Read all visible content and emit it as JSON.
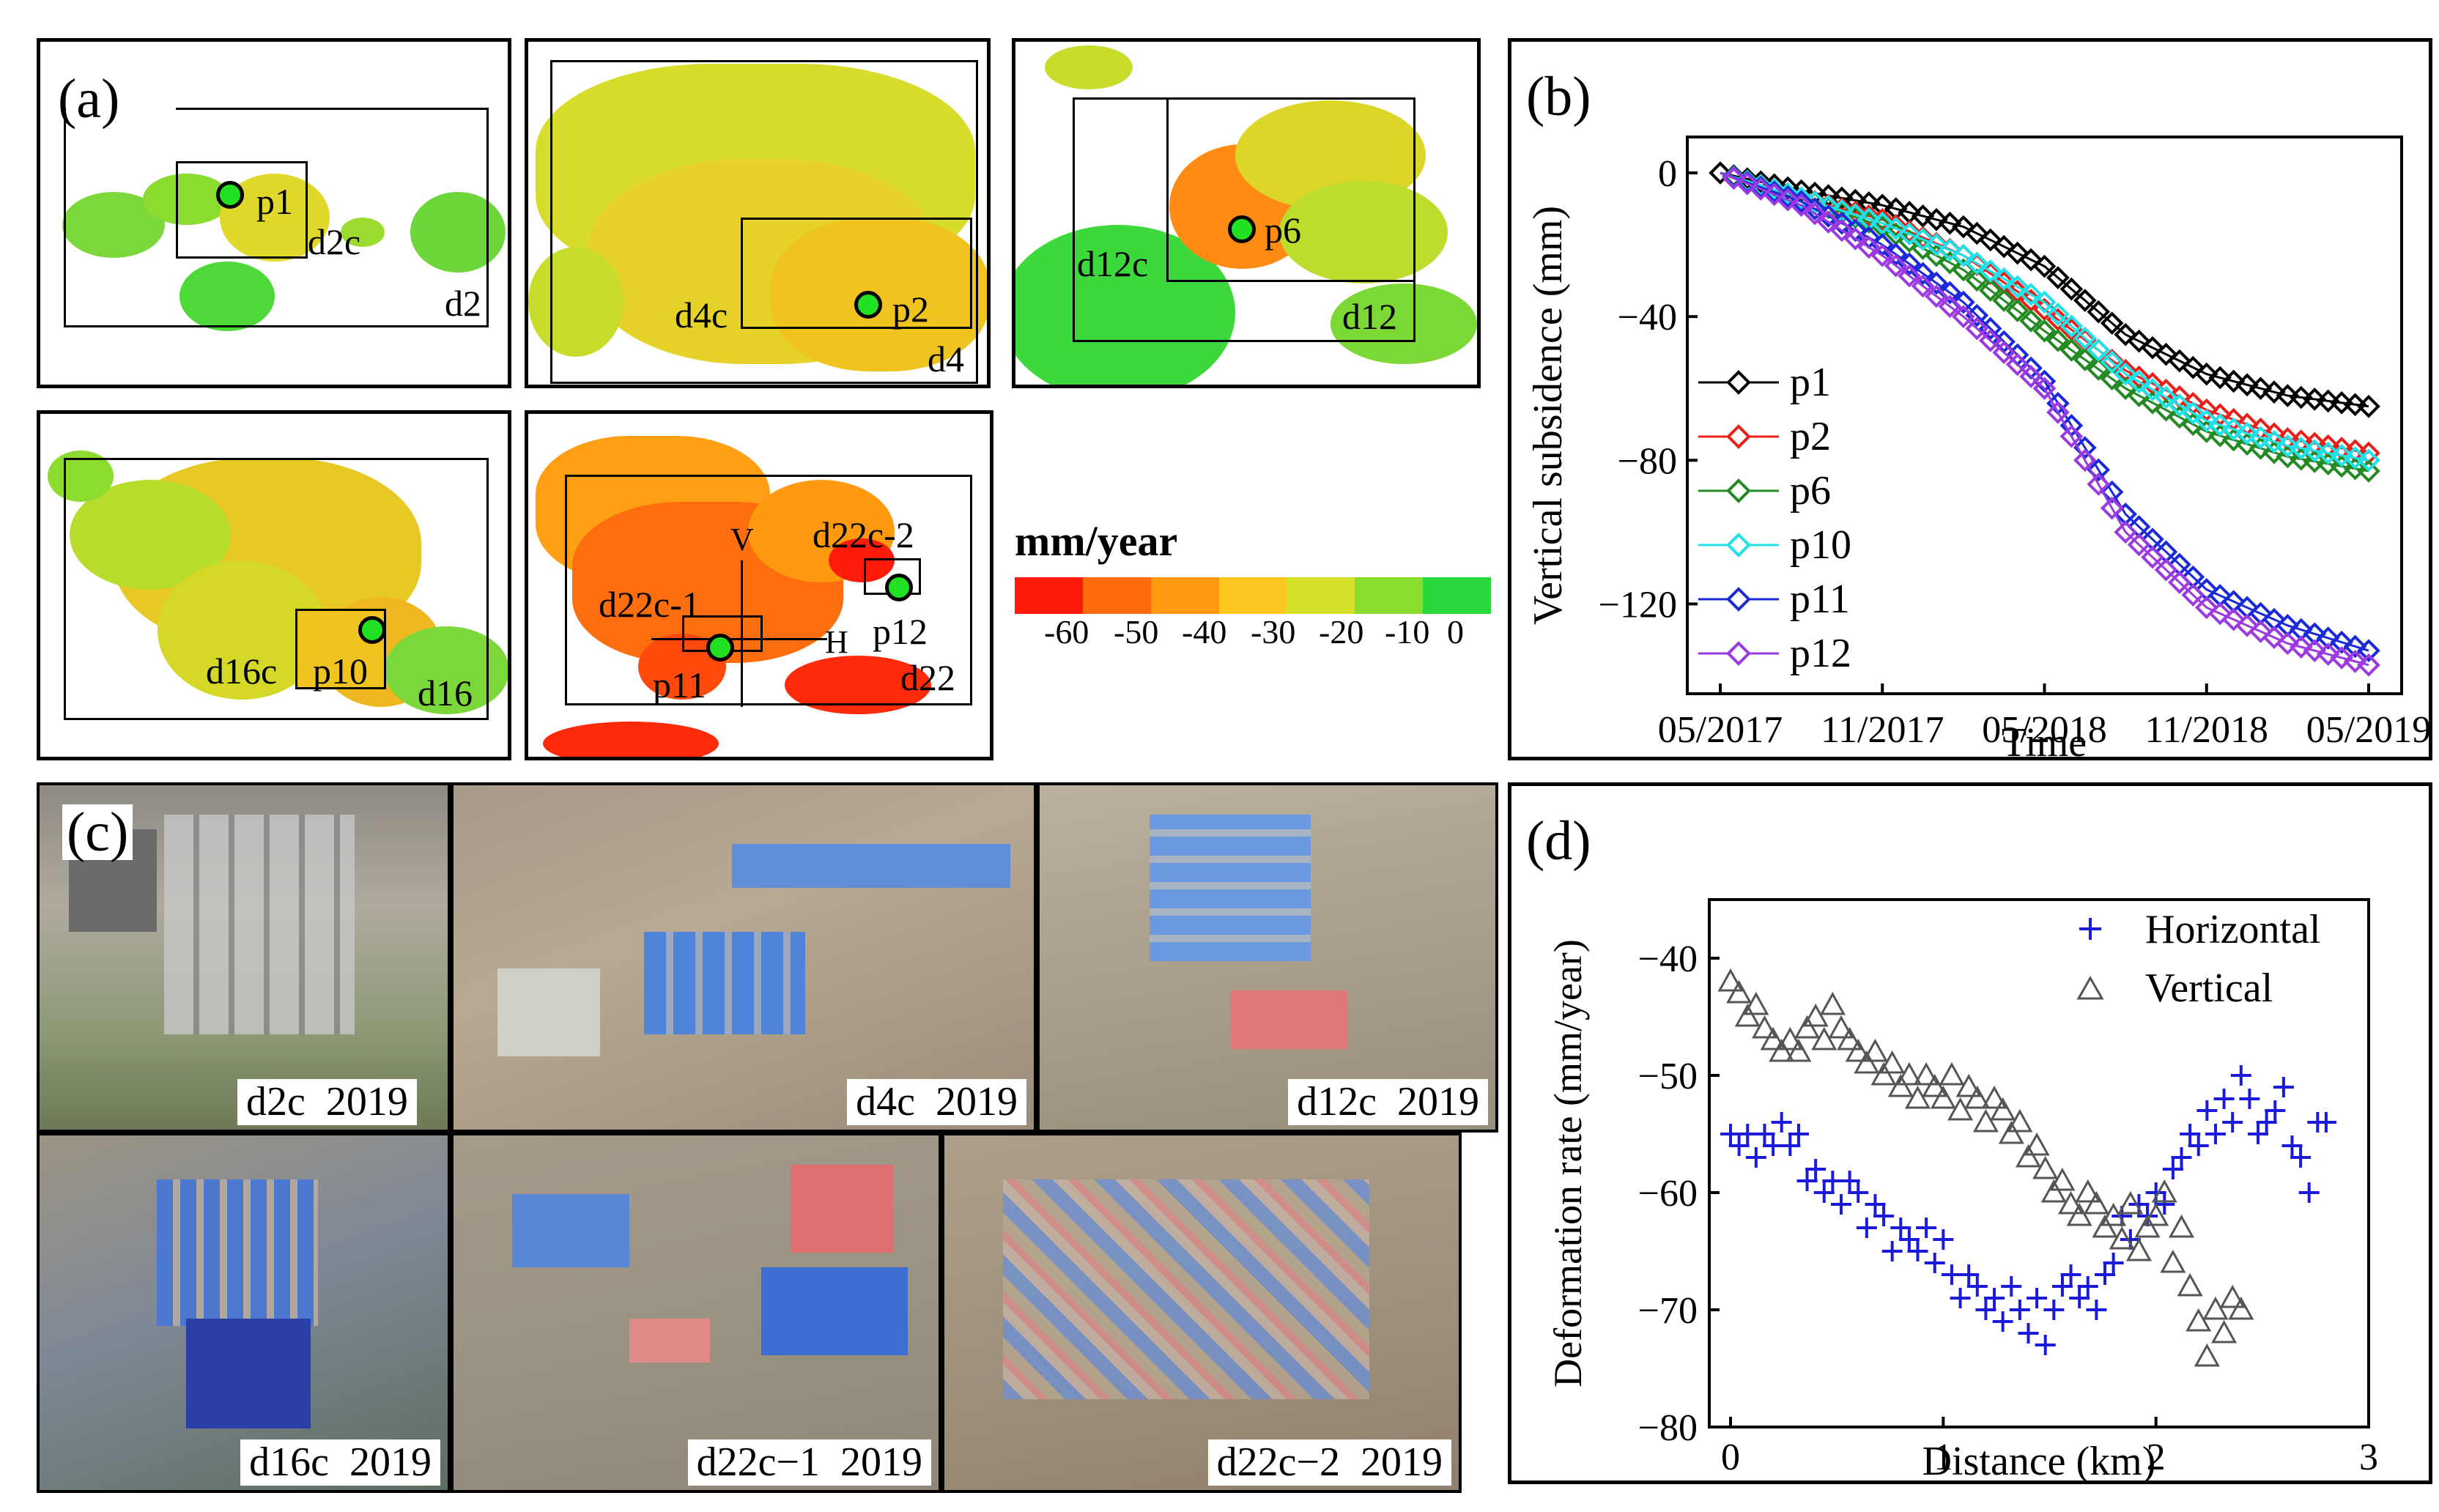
{
  "panel_a": {
    "label": "(a)",
    "maps": [
      {
        "boxes": [
          "d2c",
          "d2"
        ],
        "points": [
          "p1"
        ]
      },
      {
        "boxes": [
          "d4c",
          "d4"
        ],
        "points": [
          "p2"
        ]
      },
      {
        "boxes": [
          "d12c",
          "d12"
        ],
        "points": [
          "p6"
        ]
      },
      {
        "boxes": [
          "d16c",
          "d16"
        ],
        "points": [
          "p10"
        ]
      },
      {
        "boxes": [
          "d22c-1",
          "d22c-2",
          "d22"
        ],
        "points": [
          "p11",
          "p12"
        ],
        "profile_labels": [
          "V",
          "H"
        ]
      }
    ],
    "colorbar": {
      "title": "mm/year",
      "ticks": [
        "-60",
        "-50",
        "-40",
        "-30",
        "-20",
        "-10",
        "0"
      ],
      "colors": [
        "#ff1a0a",
        "#ff6a0a",
        "#ff9a10",
        "#ffc820",
        "#d6e028",
        "#8cdc30",
        "#28d83c"
      ]
    }
  },
  "panel_c": {
    "label": "(c)",
    "photos": [
      {
        "name": "d2c",
        "year": "2019"
      },
      {
        "name": "d4c",
        "year": "2019"
      },
      {
        "name": "d12c",
        "year": "2019"
      },
      {
        "name": "d16c",
        "year": "2019"
      },
      {
        "name": "d22c−1",
        "year": "2019"
      },
      {
        "name": "d22c−2",
        "year": "2019"
      }
    ]
  },
  "chart_data": [
    {
      "panel": "(b)",
      "type": "line",
      "xlabel": "Time",
      "ylabel": "Vertical subsidence (mm)",
      "x_ticks": [
        "05/2017",
        "11/2017",
        "05/2018",
        "11/2018",
        "05/2019"
      ],
      "x_range_months": [
        0,
        24
      ],
      "ylim": [
        -145,
        10
      ],
      "y_ticks": [
        0,
        -40,
        -80,
        -120
      ],
      "marker": "diamond",
      "legend_position": "left",
      "series": [
        {
          "name": "p1",
          "color": "#000000",
          "key_months": [
            0,
            3,
            6,
            9,
            12,
            15,
            18,
            21,
            24
          ],
          "key_values": [
            0,
            -5,
            -9,
            -15,
            -26,
            -45,
            -56,
            -62,
            -65
          ]
        },
        {
          "name": "p2",
          "color": "#e8201a",
          "key_months": [
            0,
            3,
            6,
            9,
            12,
            15,
            18,
            21,
            24
          ],
          "key_values": [
            0,
            -7,
            -13,
            -23,
            -38,
            -55,
            -66,
            -74,
            -78
          ]
        },
        {
          "name": "p6",
          "color": "#238a23",
          "key_months": [
            0,
            3,
            6,
            9,
            12,
            15,
            18,
            21,
            24
          ],
          "key_values": [
            0,
            -7,
            -15,
            -27,
            -44,
            -60,
            -72,
            -79,
            -83
          ]
        },
        {
          "name": "p10",
          "color": "#22e0e8",
          "key_months": [
            0,
            3,
            6,
            9,
            12,
            15,
            18,
            21,
            24
          ],
          "key_values": [
            0,
            -7,
            -14,
            -23,
            -36,
            -56,
            -69,
            -76,
            -80
          ]
        },
        {
          "name": "p11",
          "color": "#1a2ad8",
          "key_months": [
            0,
            3,
            6,
            9,
            12,
            15,
            18,
            21,
            24
          ],
          "key_values": [
            0,
            -8,
            -20,
            -36,
            -58,
            -95,
            -116,
            -126,
            -133
          ]
        },
        {
          "name": "p12",
          "color": "#9a3ae0",
          "key_months": [
            0,
            3,
            6,
            9,
            12,
            15,
            18,
            21,
            24
          ],
          "key_values": [
            0,
            -9,
            -23,
            -40,
            -60,
            -100,
            -121,
            -131,
            -137
          ]
        }
      ]
    },
    {
      "panel": "(d)",
      "type": "scatter",
      "xlabel": "Distance (km)",
      "ylabel": "Deformation rate (mm/year)",
      "xlim": [
        -0.1,
        3.0
      ],
      "ylim": [
        -80,
        -35
      ],
      "x_ticks": [
        0,
        1,
        2,
        3
      ],
      "y_ticks": [
        -40,
        -50,
        -60,
        -70,
        -80
      ],
      "legend_position": "top-right",
      "series": [
        {
          "name": "Horizontal",
          "marker": "plus",
          "color": "#1a1ad8",
          "x": [
            0.0,
            0.04,
            0.08,
            0.12,
            0.16,
            0.2,
            0.24,
            0.28,
            0.32,
            0.36,
            0.4,
            0.44,
            0.48,
            0.52,
            0.56,
            0.6,
            0.64,
            0.68,
            0.72,
            0.76,
            0.8,
            0.84,
            0.88,
            0.92,
            0.96,
            1.0,
            1.04,
            1.08,
            1.12,
            1.16,
            1.2,
            1.24,
            1.28,
            1.32,
            1.36,
            1.4,
            1.44,
            1.48,
            1.52,
            1.56,
            1.6,
            1.64,
            1.68,
            1.72,
            1.76,
            1.8,
            1.84,
            1.88,
            1.92,
            1.96,
            2.0,
            2.04,
            2.08,
            2.12,
            2.16,
            2.2,
            2.24,
            2.28,
            2.32,
            2.36,
            2.4,
            2.44,
            2.48,
            2.52,
            2.56,
            2.6,
            2.64,
            2.68,
            2.72,
            2.76,
            2.8
          ],
          "y": [
            -55,
            -56,
            -55,
            -57,
            -55,
            -56,
            -54,
            -56,
            -55,
            -59,
            -58,
            -60,
            -59,
            -61,
            -59,
            -60,
            -63,
            -61,
            -62,
            -65,
            -63,
            -64,
            -65,
            -63,
            -66,
            -64,
            -67,
            -69,
            -67,
            -68,
            -70,
            -69,
            -71,
            -68,
            -70,
            -72,
            -69,
            -73,
            -70,
            -68,
            -67,
            -69,
            -68,
            -70,
            -67,
            -66,
            -62,
            -64,
            -61,
            -62,
            -60,
            -61,
            -58,
            -57,
            -55,
            -56,
            -53,
            -55,
            -52,
            -54,
            -50,
            -52,
            -55,
            -54,
            -53,
            -51,
            -56,
            -57,
            -60,
            -54,
            -54
          ]
        },
        {
          "name": "Vertical",
          "marker": "triangle",
          "color": "#555555",
          "x": [
            0.0,
            0.04,
            0.08,
            0.12,
            0.16,
            0.2,
            0.24,
            0.28,
            0.32,
            0.36,
            0.4,
            0.44,
            0.48,
            0.52,
            0.56,
            0.6,
            0.64,
            0.68,
            0.72,
            0.76,
            0.8,
            0.84,
            0.88,
            0.92,
            0.96,
            1.0,
            1.04,
            1.08,
            1.12,
            1.16,
            1.2,
            1.24,
            1.28,
            1.32,
            1.36,
            1.4,
            1.44,
            1.48,
            1.52,
            1.56,
            1.6,
            1.64,
            1.68,
            1.72,
            1.76,
            1.8,
            1.84,
            1.88,
            1.92,
            1.96,
            2.0,
            2.04,
            2.08,
            2.12,
            2.16,
            2.2,
            2.24,
            2.28,
            2.32,
            2.36,
            2.4
          ],
          "y": [
            -42,
            -43,
            -45,
            -44,
            -46,
            -47,
            -48,
            -47,
            -48,
            -46,
            -45,
            -47,
            -44,
            -46,
            -47,
            -48,
            -49,
            -48,
            -50,
            -49,
            -51,
            -50,
            -52,
            -50,
            -51,
            -52,
            -50,
            -53,
            -51,
            -52,
            -54,
            -52,
            -53,
            -55,
            -54,
            -57,
            -56,
            -58,
            -60,
            -59,
            -61,
            -62,
            -60,
            -61,
            -63,
            -62,
            -64,
            -61,
            -65,
            -63,
            -62,
            -60,
            -66,
            -63,
            -68,
            -71,
            -74,
            -70,
            -72,
            -69,
            -70
          ]
        }
      ]
    }
  ]
}
